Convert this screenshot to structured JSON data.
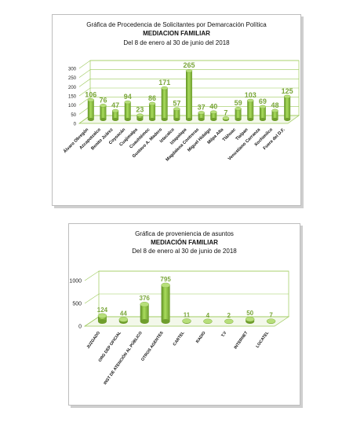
{
  "chart_data": [
    {
      "type": "bar",
      "title": "Gráfica de Procedencia de Solicitantes por Demarcación Política",
      "subtitle": "MEDIACION FAMILIAR",
      "period": "Del  8 de enero  al  30 de junio  del  2018",
      "ylim": [
        0,
        300
      ],
      "yticks": [
        "0",
        "50",
        "100",
        "150",
        "200",
        "250",
        "300"
      ],
      "categories": [
        "Álvaro Obregón",
        "Azcapotzalco",
        "Benito Juárez",
        "Coyoacán",
        "Cuajimalpa",
        "Cuauhtémoc",
        "Gustavo A. Madero",
        "Iztacalco",
        "Iztapalapa",
        "Magdalena Contreras",
        "Miguel Hidalgo",
        "Milpa Alta",
        "Tláhuac",
        "Tlalpan",
        "Venustiano Carranza",
        "Xochimilco",
        "Fuera del D.F."
      ],
      "values": [
        106,
        76,
        47,
        94,
        23,
        86,
        171,
        57,
        265,
        37,
        40,
        7,
        59,
        103,
        69,
        48,
        125
      ],
      "bar_color": "#8dc63f",
      "label_color": "#7aa63a",
      "grid": true
    },
    {
      "type": "bar",
      "title": "Gráfica de proveniencia de asuntos",
      "subtitle": "MEDIACIÓN FAMILIAR",
      "period": "Del  8 de enero al  30 de junio  de  2018",
      "ylim": [
        0,
        1000
      ],
      "yticks": [
        "0",
        "500",
        "1000"
      ],
      "categories": [
        "JUZGADO",
        "ORG DEP OFICIAL",
        "INST DE ATENCIÓN AL PÚBLICO",
        "OTROS AGENTES",
        "CARTEL",
        "RADIO",
        "T.V",
        "INTERNET",
        "LOCATEL"
      ],
      "values": [
        124,
        44,
        376,
        795,
        11,
        4,
        2,
        50,
        7
      ],
      "bar_color": "#8dc63f",
      "label_color": "#7aa63a",
      "grid": true
    }
  ]
}
